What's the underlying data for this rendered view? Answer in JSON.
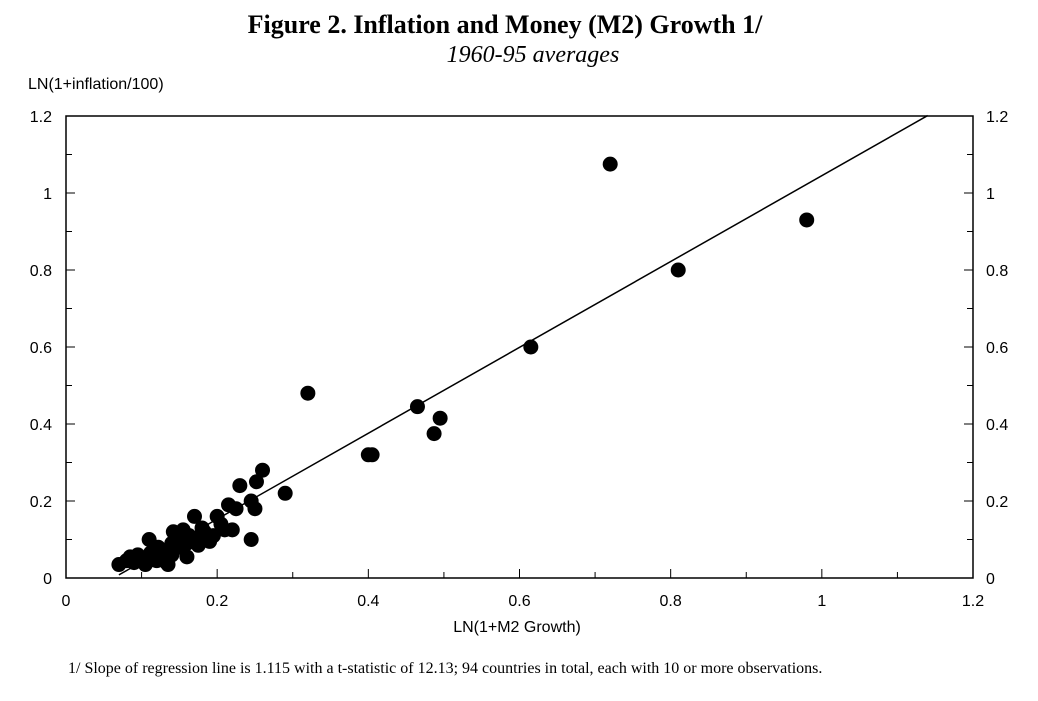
{
  "figure": {
    "title": "Figure 2. Inflation and Money (M2) Growth 1/",
    "subtitle": "1960-95 averages",
    "footnote": "1/  Slope of regression line is 1.115 with a t-statistic of  12.13; 94 countries in total, each with 10  or more observations."
  },
  "chart_data": {
    "type": "scatter",
    "title": "Figure 2. Inflation and Money (M2) Growth 1/",
    "subtitle": "1960-95 averages",
    "xlabel": "LN(1+M2 Growth)",
    "ylabel": "LN(1+inflation/100)",
    "xlim": [
      0,
      1.2
    ],
    "ylim": [
      0,
      1.2
    ],
    "x_ticks": [
      "0",
      "0.2",
      "0.4",
      "0.6",
      "0.8",
      "1",
      "1.2"
    ],
    "y_ticks": [
      "0",
      "0.2",
      "0.4",
      "0.6",
      "0.8",
      "1",
      "1.2"
    ],
    "grid": false,
    "regression_line": {
      "slope": 1.115,
      "intercept": -0.07,
      "x_range": [
        0.07,
        1.14
      ]
    },
    "points": [
      {
        "x": 0.07,
        "y": 0.035
      },
      {
        "x": 0.08,
        "y": 0.045
      },
      {
        "x": 0.09,
        "y": 0.04
      },
      {
        "x": 0.085,
        "y": 0.055
      },
      {
        "x": 0.095,
        "y": 0.06
      },
      {
        "x": 0.1,
        "y": 0.05
      },
      {
        "x": 0.105,
        "y": 0.035
      },
      {
        "x": 0.11,
        "y": 0.1
      },
      {
        "x": 0.112,
        "y": 0.065
      },
      {
        "x": 0.12,
        "y": 0.045
      },
      {
        "x": 0.122,
        "y": 0.08
      },
      {
        "x": 0.13,
        "y": 0.07
      },
      {
        "x": 0.133,
        "y": 0.04
      },
      {
        "x": 0.135,
        "y": 0.035
      },
      {
        "x": 0.14,
        "y": 0.06
      },
      {
        "x": 0.14,
        "y": 0.09
      },
      {
        "x": 0.142,
        "y": 0.12
      },
      {
        "x": 0.15,
        "y": 0.08
      },
      {
        "x": 0.152,
        "y": 0.1
      },
      {
        "x": 0.155,
        "y": 0.125
      },
      {
        "x": 0.16,
        "y": 0.09
      },
      {
        "x": 0.16,
        "y": 0.055
      },
      {
        "x": 0.163,
        "y": 0.11
      },
      {
        "x": 0.17,
        "y": 0.16
      },
      {
        "x": 0.172,
        "y": 0.1
      },
      {
        "x": 0.175,
        "y": 0.085
      },
      {
        "x": 0.18,
        "y": 0.13
      },
      {
        "x": 0.183,
        "y": 0.12
      },
      {
        "x": 0.19,
        "y": 0.095
      },
      {
        "x": 0.195,
        "y": 0.11
      },
      {
        "x": 0.2,
        "y": 0.16
      },
      {
        "x": 0.205,
        "y": 0.14
      },
      {
        "x": 0.21,
        "y": 0.125
      },
      {
        "x": 0.215,
        "y": 0.19
      },
      {
        "x": 0.22,
        "y": 0.125
      },
      {
        "x": 0.225,
        "y": 0.18
      },
      {
        "x": 0.23,
        "y": 0.24
      },
      {
        "x": 0.245,
        "y": 0.2
      },
      {
        "x": 0.245,
        "y": 0.1
      },
      {
        "x": 0.25,
        "y": 0.18
      },
      {
        "x": 0.252,
        "y": 0.25
      },
      {
        "x": 0.26,
        "y": 0.28
      },
      {
        "x": 0.29,
        "y": 0.22
      },
      {
        "x": 0.32,
        "y": 0.48
      },
      {
        "x": 0.4,
        "y": 0.32
      },
      {
        "x": 0.405,
        "y": 0.32
      },
      {
        "x": 0.465,
        "y": 0.445
      },
      {
        "x": 0.487,
        "y": 0.375
      },
      {
        "x": 0.495,
        "y": 0.415
      },
      {
        "x": 0.615,
        "y": 0.6
      },
      {
        "x": 0.72,
        "y": 1.075
      },
      {
        "x": 0.81,
        "y": 0.8
      },
      {
        "x": 0.98,
        "y": 0.93
      }
    ]
  }
}
